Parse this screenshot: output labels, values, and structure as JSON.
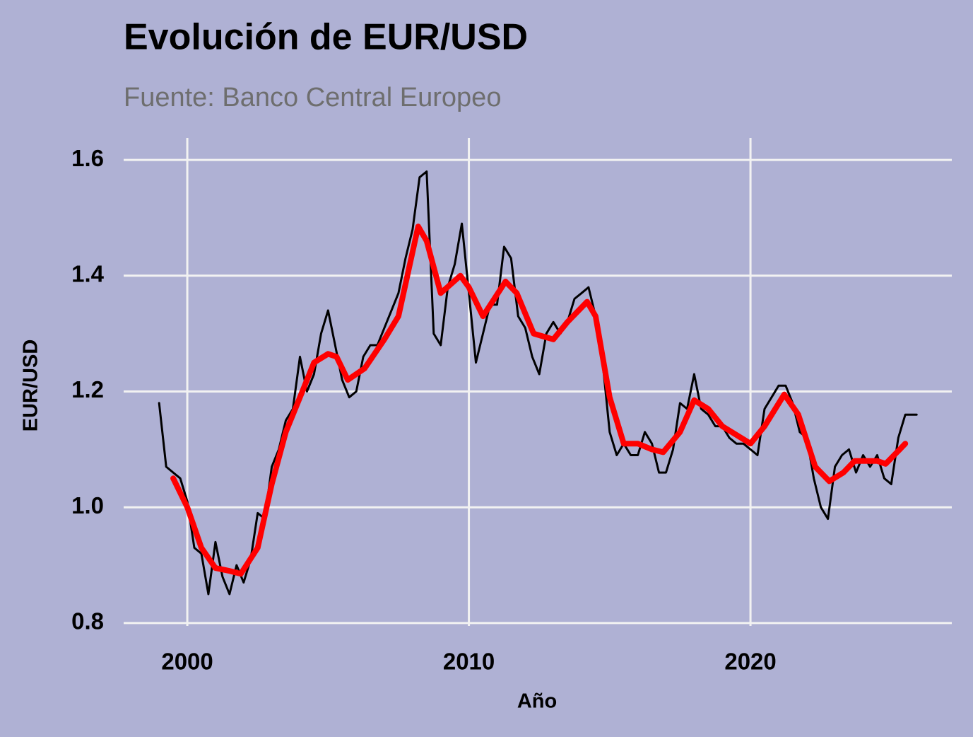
{
  "chart_data": {
    "type": "line",
    "title": "Evolución de EUR/USD",
    "subtitle": "Fuente: Banco Central Europeo",
    "xlabel": "Año",
    "ylabel": "EUR/USD",
    "xlim": [
      1997.74,
      2027.15
    ],
    "ylim": [
      0.795,
      1.638
    ],
    "xticks": [
      2000,
      2010,
      2020
    ],
    "yticks": [
      0.8,
      {
        "value": 1,
        "label": "1.0"
      },
      1.2,
      1.4,
      1.6
    ],
    "grid": true,
    "series": [
      {
        "color": "#000000",
        "x": [
          1999.0,
          1999.25,
          1999.5,
          1999.75,
          2000.0,
          2000.25,
          2000.5,
          2000.75,
          2001.0,
          2001.25,
          2001.5,
          2001.75,
          2002.0,
          2002.25,
          2002.5,
          2002.75,
          2003.0,
          2003.25,
          2003.5,
          2003.75,
          2004.0,
          2004.25,
          2004.5,
          2004.75,
          2005.0,
          2005.25,
          2005.5,
          2005.75,
          2006.0,
          2006.25,
          2006.5,
          2006.75,
          2007.0,
          2007.25,
          2007.5,
          2007.75,
          2008.0,
          2008.25,
          2008.5,
          2008.75,
          2009.0,
          2009.25,
          2009.5,
          2009.75,
          2010.0,
          2010.25,
          2010.5,
          2010.75,
          2011.0,
          2011.25,
          2011.5,
          2011.75,
          2012.0,
          2012.25,
          2012.5,
          2012.75,
          2013.0,
          2013.25,
          2013.5,
          2013.75,
          2014.0,
          2014.25,
          2014.5,
          2014.75,
          2015.0,
          2015.25,
          2015.5,
          2015.75,
          2016.0,
          2016.25,
          2016.5,
          2016.75,
          2017.0,
          2017.25,
          2017.5,
          2017.75,
          2018.0,
          2018.25,
          2018.5,
          2018.75,
          2019.0,
          2019.25,
          2019.5,
          2019.75,
          2020.0,
          2020.25,
          2020.5,
          2020.75,
          2021.0,
          2021.25,
          2021.5,
          2021.75,
          2022.0,
          2022.25,
          2022.5,
          2022.75,
          2023.0,
          2023.25,
          2023.5,
          2023.75,
          2024.0,
          2024.25,
          2024.5,
          2024.75,
          2025.0,
          2025.25,
          2025.5,
          2025.75,
          2025.9
        ],
        "values": [
          1.18,
          1.07,
          1.06,
          1.05,
          1.01,
          0.93,
          0.92,
          0.85,
          0.94,
          0.88,
          0.85,
          0.9,
          0.87,
          0.91,
          0.99,
          0.98,
          1.07,
          1.1,
          1.15,
          1.17,
          1.26,
          1.2,
          1.23,
          1.3,
          1.34,
          1.28,
          1.22,
          1.19,
          1.2,
          1.26,
          1.28,
          1.28,
          1.31,
          1.34,
          1.37,
          1.43,
          1.48,
          1.57,
          1.58,
          1.3,
          1.28,
          1.38,
          1.42,
          1.49,
          1.37,
          1.25,
          1.3,
          1.35,
          1.35,
          1.45,
          1.43,
          1.33,
          1.31,
          1.26,
          1.23,
          1.3,
          1.32,
          1.3,
          1.32,
          1.36,
          1.37,
          1.38,
          1.33,
          1.25,
          1.13,
          1.09,
          1.11,
          1.09,
          1.09,
          1.13,
          1.11,
          1.06,
          1.06,
          1.1,
          1.18,
          1.17,
          1.23,
          1.17,
          1.16,
          1.14,
          1.14,
          1.12,
          1.11,
          1.11,
          1.1,
          1.09,
          1.17,
          1.19,
          1.21,
          1.21,
          1.18,
          1.13,
          1.12,
          1.05,
          1.0,
          0.98,
          1.07,
          1.09,
          1.1,
          1.06,
          1.09,
          1.07,
          1.09,
          1.05,
          1.04,
          1.12,
          1.16,
          1.16,
          1.16
        ]
      },
      {
        "color": "#ff0000",
        "x": [
          1999.5,
          2000.0,
          2000.5,
          2001.0,
          2001.5,
          2001.9,
          2002.5,
          2003.0,
          2003.5,
          2004.0,
          2004.5,
          2005.0,
          2005.3,
          2005.7,
          2006.3,
          2007.0,
          2007.5,
          2008.2,
          2008.5,
          2009.0,
          2009.7,
          2010.0,
          2010.5,
          2011.3,
          2011.7,
          2012.3,
          2013.0,
          2013.5,
          2014.2,
          2014.5,
          2015.0,
          2015.5,
          2016.0,
          2016.5,
          2016.9,
          2017.5,
          2018.0,
          2018.5,
          2019.0,
          2020.0,
          2020.5,
          2021.2,
          2021.7,
          2022.3,
          2022.8,
          2023.3,
          2023.7,
          2024.5,
          2024.8,
          2025.3,
          2025.5
        ],
        "values": [
          1.05,
          1.0,
          0.93,
          0.895,
          0.89,
          0.885,
          0.93,
          1.04,
          1.13,
          1.19,
          1.25,
          1.265,
          1.26,
          1.22,
          1.24,
          1.29,
          1.33,
          1.485,
          1.46,
          1.37,
          1.4,
          1.38,
          1.33,
          1.39,
          1.37,
          1.3,
          1.29,
          1.32,
          1.355,
          1.33,
          1.19,
          1.11,
          1.11,
          1.1,
          1.095,
          1.13,
          1.185,
          1.17,
          1.14,
          1.11,
          1.14,
          1.195,
          1.16,
          1.07,
          1.045,
          1.06,
          1.08,
          1.08,
          1.075,
          1.1,
          1.11
        ]
      }
    ]
  }
}
